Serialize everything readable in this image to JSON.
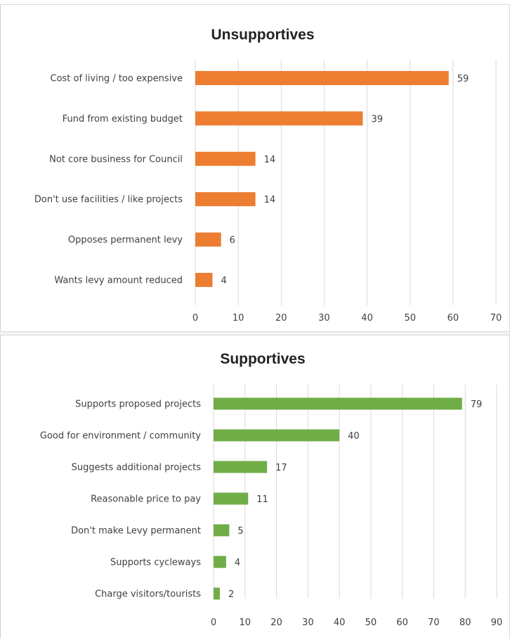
{
  "colors": {
    "unsupportive_bar": "#ED7D31",
    "supportive_bar": "#70AD47",
    "grid": "#d9d9d9",
    "text": "#404040"
  },
  "chart_data": [
    {
      "type": "bar",
      "orientation": "horizontal",
      "title": "Unsupportives",
      "categories": [
        "Cost of living / too expensive",
        "Fund from existing budget",
        "Not core business for Council",
        "Don't use facilities / like projects",
        "Opposes permanent levy",
        "Wants levy amount reduced"
      ],
      "values": [
        59,
        39,
        14,
        14,
        6,
        4
      ],
      "xlim": [
        0,
        70
      ],
      "ticks": [
        "0",
        "10",
        "20",
        "30",
        "40",
        "50",
        "60",
        "70"
      ],
      "grid": true,
      "data_labels": true
    },
    {
      "type": "bar",
      "orientation": "horizontal",
      "title": "Supportives",
      "categories": [
        "Supports proposed projects",
        "Good for environment / community",
        "Suggests additional projects",
        "Reasonable price to pay",
        "Don't make Levy permanent",
        "Supports cycleways",
        "Charge visitors/tourists"
      ],
      "values": [
        79,
        40,
        17,
        11,
        5,
        4,
        2
      ],
      "xlim": [
        0,
        90
      ],
      "ticks": [
        "0",
        "10",
        "20",
        "30",
        "40",
        "50",
        "60",
        "70",
        "80",
        "90"
      ],
      "grid": true,
      "data_labels": true
    }
  ]
}
